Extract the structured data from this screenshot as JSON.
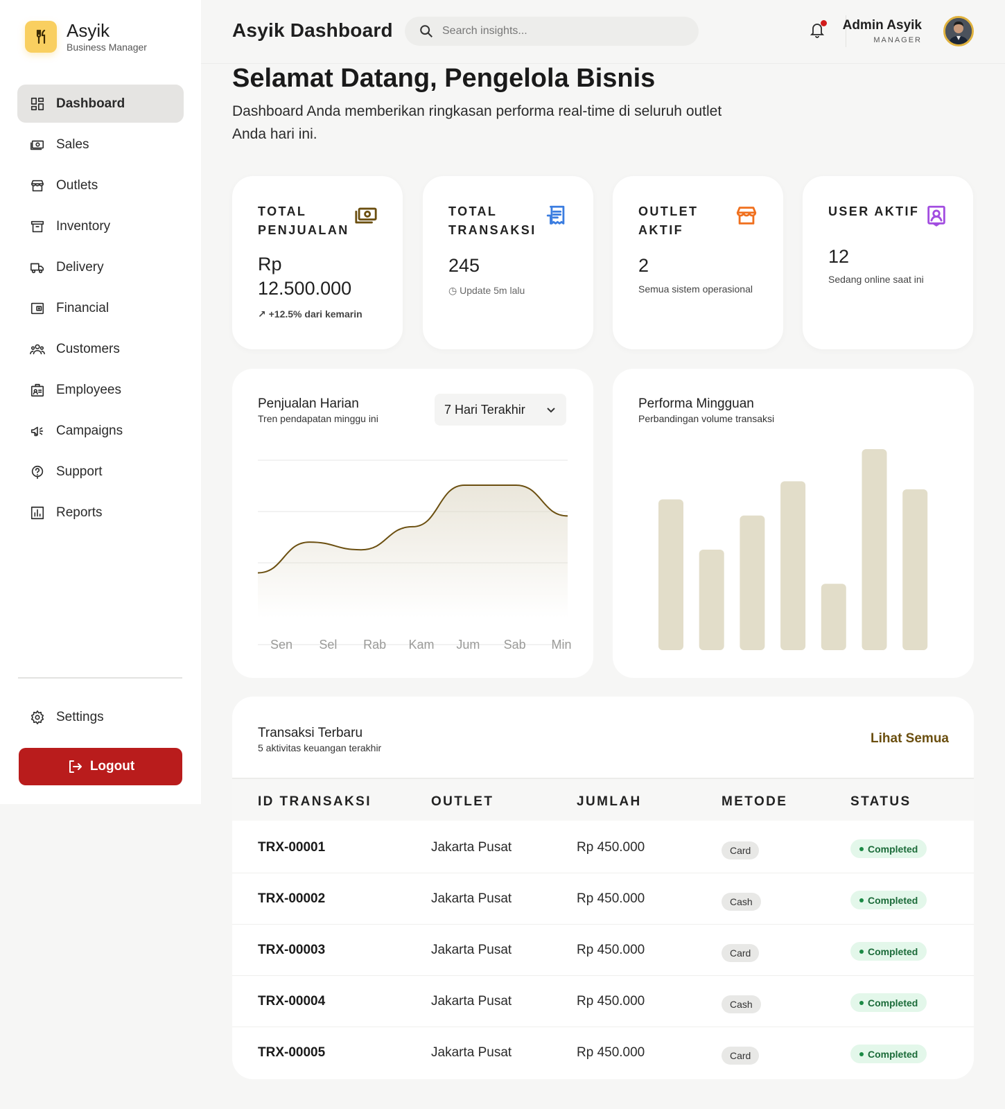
{
  "brand": {
    "name": "Asyik",
    "subtitle": "Business Manager"
  },
  "sidebar": {
    "items": [
      {
        "label": "Dashboard",
        "icon": "dashboard-icon",
        "active": true
      },
      {
        "label": "Sales",
        "icon": "cash-icon"
      },
      {
        "label": "Outlets",
        "icon": "store-icon"
      },
      {
        "label": "Inventory",
        "icon": "archive-icon"
      },
      {
        "label": "Delivery",
        "icon": "truck-icon"
      },
      {
        "label": "Financial",
        "icon": "wallet-icon"
      },
      {
        "label": "Customers",
        "icon": "groups-icon"
      },
      {
        "label": "Employees",
        "icon": "badge-icon"
      },
      {
        "label": "Campaigns",
        "icon": "megaphone-icon"
      },
      {
        "label": "Support",
        "icon": "help-icon"
      },
      {
        "label": "Reports",
        "icon": "bar-chart-icon"
      }
    ],
    "settings_label": "Settings",
    "logout_label": "Logout"
  },
  "header": {
    "title": "Asyik Dashboard",
    "search_placeholder": "Search insights...",
    "user_name": "Admin Asyik",
    "user_role": "MANAGER"
  },
  "welcome": {
    "title": "Selamat Datang, Pengelola Bisnis",
    "description": "Dashboard Anda memberikan ringkasan performa real-time di seluruh outlet Anda hari ini."
  },
  "stats": [
    {
      "label": "TOTAL PENJUALAN",
      "value": "Rp 12.500.000",
      "sub": "+12.5% dari kemarin",
      "icon": "money-icon",
      "color": "#6b4f10"
    },
    {
      "label": "TOTAL TRANSAKSI",
      "value": "245",
      "sub": "Update 5m lalu",
      "icon": "receipt-icon",
      "color": "#3b7de0"
    },
    {
      "label": "OUTLET AKTIF",
      "value": "2",
      "sub": "Semua sistem operasional",
      "icon": "store-icon",
      "color": "#f0701e"
    },
    {
      "label": "USER AKTIF",
      "value": "12",
      "sub": "Sedang online saat ini",
      "icon": "user-badge-icon",
      "color": "#a24de0"
    }
  ],
  "sales_chart": {
    "title": "Penjualan Harian",
    "subtitle": "Tren pendapatan minggu ini",
    "range_selected": "7 Hari Terakhir"
  },
  "weekly_chart": {
    "title": "Performa Mingguan",
    "subtitle": "Perbandingan volume transaksi"
  },
  "chart_data": [
    {
      "type": "area",
      "title": "Penjualan Harian",
      "subtitle": "Tren pendapatan minggu ini",
      "categories": [
        "Sen",
        "Sel",
        "Rab",
        "Kam",
        "Jum",
        "Sab",
        "Min"
      ],
      "values": [
        25,
        45,
        40,
        55,
        82,
        82,
        62
      ],
      "ylim": [
        0,
        100
      ],
      "grid": true,
      "color": "#6b4f10"
    },
    {
      "type": "bar",
      "title": "Performa Mingguan",
      "subtitle": "Perbandingan volume transaksi",
      "values": [
        75,
        50,
        67,
        84,
        33,
        100,
        80
      ],
      "ylim": [
        0,
        100
      ],
      "color": "#e2ddc9"
    }
  ],
  "transactions": {
    "title": "Transaksi Terbaru",
    "subtitle": "5 aktivitas keuangan terakhir",
    "see_all_label": "Lihat Semua",
    "columns": [
      "ID TRANSAKSI",
      "OUTLET",
      "JUMLAH",
      "METODE",
      "STATUS"
    ],
    "rows": [
      {
        "id": "TRX-00001",
        "outlet": "Jakarta Pusat",
        "amount": "Rp 450.000",
        "method": "Card",
        "status": "Completed"
      },
      {
        "id": "TRX-00002",
        "outlet": "Jakarta Pusat",
        "amount": "Rp 450.000",
        "method": "Cash",
        "status": "Completed"
      },
      {
        "id": "TRX-00003",
        "outlet": "Jakarta Pusat",
        "amount": "Rp 450.000",
        "method": "Card",
        "status": "Completed"
      },
      {
        "id": "TRX-00004",
        "outlet": "Jakarta Pusat",
        "amount": "Rp 450.000",
        "method": "Cash",
        "status": "Completed"
      },
      {
        "id": "TRX-00005",
        "outlet": "Jakarta Pusat",
        "amount": "Rp 450.000",
        "method": "Card",
        "status": "Completed"
      }
    ]
  }
}
